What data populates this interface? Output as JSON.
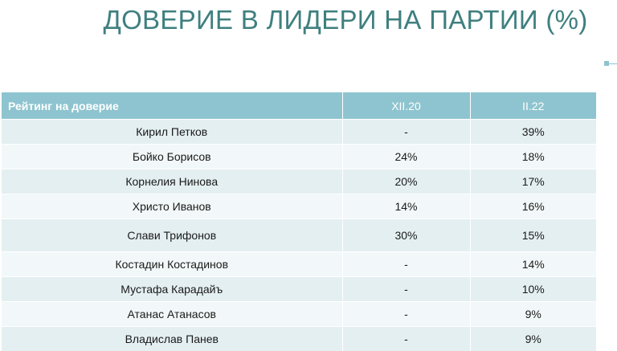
{
  "title": "ДОВЕРИЕ В ЛИДЕРИ НА ПАРТИИ (%)",
  "colors": {
    "title": "#3f7f7f",
    "header_bg": "#8ec4cf",
    "row_band_1": "#e4eff1",
    "row_band_2": "#f2f8f9"
  },
  "table": {
    "headers": [
      "Рейтинг на доверие",
      "XII.20",
      "II.22"
    ],
    "rows": [
      {
        "name": "Кирил Петков",
        "xii20": "-",
        "ii22": "39%"
      },
      {
        "name": "Бойко Борисов",
        "xii20": "24%",
        "ii22": "18%"
      },
      {
        "name": "Корнелия Нинова",
        "xii20": "20%",
        "ii22": "17%"
      },
      {
        "name": "Христо Иванов",
        "xii20": "14%",
        "ii22": "16%"
      },
      {
        "name": "Слави Трифонов",
        "xii20": "30%",
        "ii22": "15%"
      },
      {
        "name": "Костадин Костадинов",
        "xii20": "-",
        "ii22": "14%"
      },
      {
        "name": "Мустафа Карадайъ",
        "xii20": "-",
        "ii22": "10%"
      },
      {
        "name": "Атанас Атанасов",
        "xii20": "-",
        "ii22": "9%"
      },
      {
        "name": "Владислав Панев",
        "xii20": "-",
        "ii22": "9%"
      }
    ]
  }
}
